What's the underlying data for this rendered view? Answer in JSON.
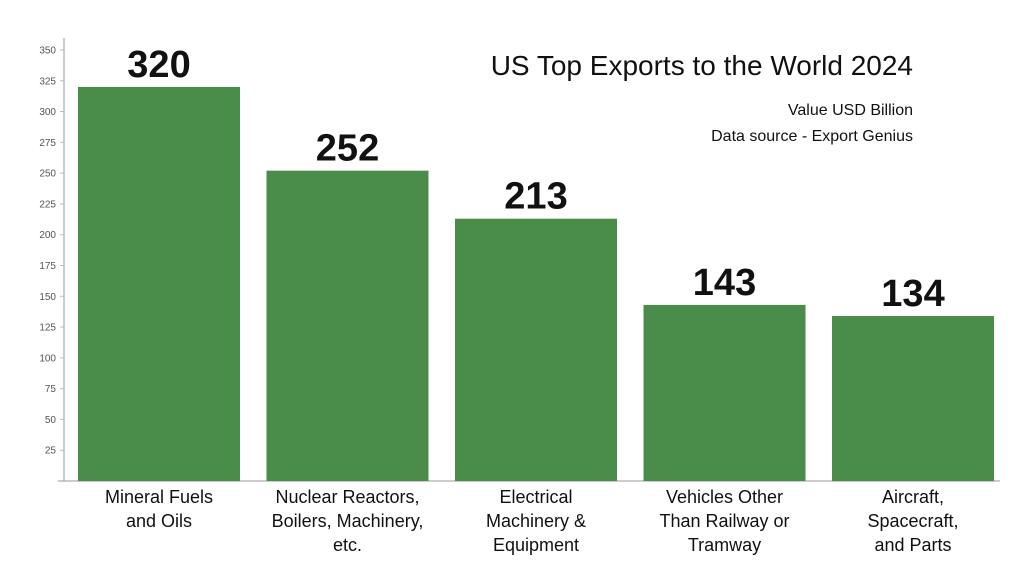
{
  "chart_data": {
    "type": "bar",
    "title": "US Top Exports to the World 2024",
    "subtitle": [
      "Value USD Billion",
      "Data source - Export Genius"
    ],
    "categories": [
      [
        "Mineral Fuels",
        "and Oils"
      ],
      [
        "Nuclear Reactors,",
        "Boilers, Machinery,",
        "etc."
      ],
      [
        "Electrical",
        "Machinery &",
        "Equipment"
      ],
      [
        "Vehicles Other",
        "Than Railway or",
        "Tramway"
      ],
      [
        "Aircraft,",
        "Spacecraft,",
        "and Parts"
      ]
    ],
    "values": [
      320,
      252,
      213,
      143,
      134
    ],
    "value_labels": [
      "320",
      "252",
      "213",
      "143",
      "134"
    ],
    "ylim": [
      0,
      350
    ],
    "yticks": [
      "25",
      "50",
      "75",
      "100",
      "125",
      "150",
      "175",
      "200",
      "225",
      "250",
      "275",
      "300",
      "325",
      "350"
    ],
    "xlabel": "",
    "ylabel": "",
    "grid": false,
    "bar_color": "#4a8c4a"
  }
}
